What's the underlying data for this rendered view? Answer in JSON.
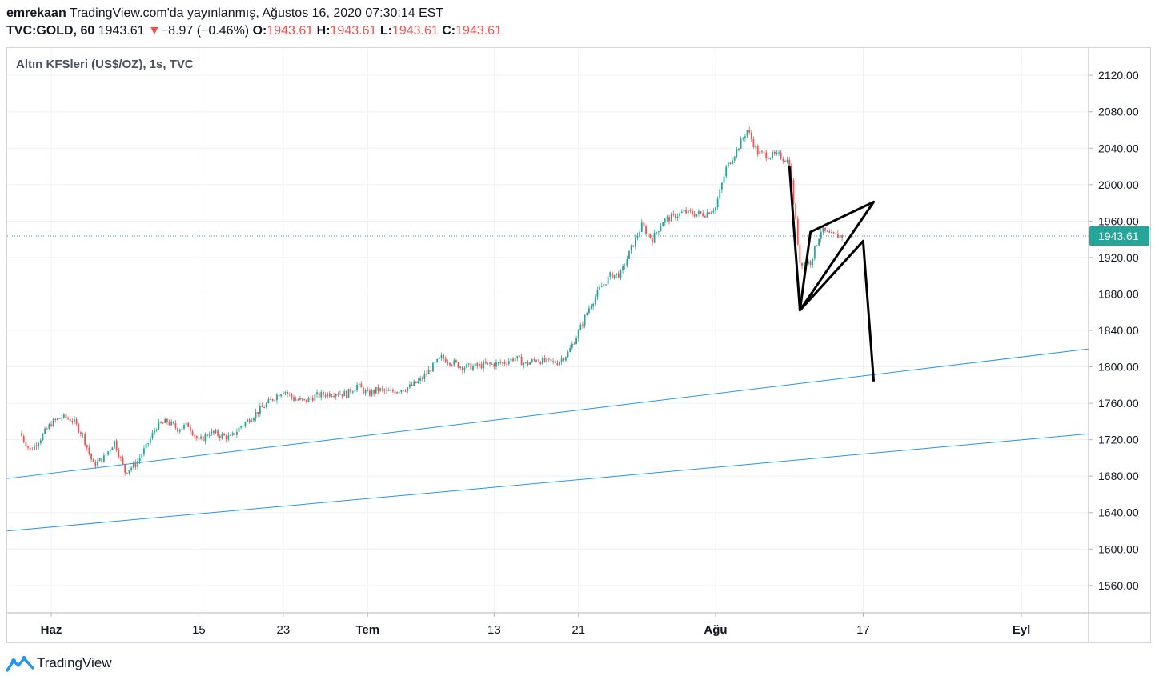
{
  "header": {
    "author": "emrekaan",
    "publish_text": "TradingView.com'da yayınlanmış, Ağustos 16, 2020 07:30:14 EST",
    "symbol": "TVC:GOLD, 60",
    "last_price": "1943.61",
    "change_arrow": "▼",
    "change": "−8.97 (−0.46%)",
    "o_label": "O:",
    "o_value": "1943.61",
    "h_label": "H:",
    "h_value": "1943.61",
    "l_label": "L:",
    "l_value": "1943.61",
    "c_label": "C:",
    "c_value": "1943.61"
  },
  "legend": {
    "title": "Altın KFSleri (US$/OZ), 1s, TVC"
  },
  "brand": {
    "name": "TradingView"
  },
  "colors": {
    "up": "#26a69a",
    "down": "#ef5350",
    "trendline": "#2196f3",
    "price_tag": "#26a69a",
    "drawing": "#000000"
  },
  "chart_data": {
    "type": "candlestick",
    "symbol": "TVC:GOLD",
    "interval": "60",
    "ylim": [
      1530,
      2150
    ],
    "y_ticks": [
      1560,
      1600,
      1640,
      1680,
      1720,
      1760,
      1800,
      1840,
      1880,
      1920,
      1960,
      2000,
      2040,
      2080,
      2120
    ],
    "x_ticks": [
      {
        "label": "Haz",
        "date": "2020-06-01",
        "bold": true
      },
      {
        "label": "15",
        "date": "2020-06-15",
        "bold": false
      },
      {
        "label": "23",
        "date": "2020-06-23",
        "bold": false
      },
      {
        "label": "Tem",
        "date": "2020-07-01",
        "bold": true
      },
      {
        "label": "13",
        "date": "2020-07-13",
        "bold": false
      },
      {
        "label": "21",
        "date": "2020-07-21",
        "bold": false
      },
      {
        "label": "Ağu",
        "date": "2020-08-03",
        "bold": true
      },
      {
        "label": "17",
        "date": "2020-08-17",
        "bold": false
      },
      {
        "label": "Eyl",
        "date": "2020-09-01",
        "bold": true
      }
    ],
    "current_price": 1943.61,
    "close_path": [
      {
        "date": "2020-05-29",
        "close": 1728
      },
      {
        "date": "2020-05-30",
        "close": 1708
      },
      {
        "date": "2020-05-31",
        "close": 1722
      },
      {
        "date": "2020-06-01",
        "close": 1738
      },
      {
        "date": "2020-06-02",
        "close": 1745
      },
      {
        "date": "2020-06-03",
        "close": 1742
      },
      {
        "date": "2020-06-04",
        "close": 1725
      },
      {
        "date": "2020-06-05",
        "close": 1692
      },
      {
        "date": "2020-06-06",
        "close": 1700
      },
      {
        "date": "2020-06-07",
        "close": 1718
      },
      {
        "date": "2020-06-08",
        "close": 1685
      },
      {
        "date": "2020-06-09",
        "close": 1693
      },
      {
        "date": "2020-06-10",
        "close": 1712
      },
      {
        "date": "2020-06-11",
        "close": 1735
      },
      {
        "date": "2020-06-12",
        "close": 1740
      },
      {
        "date": "2020-06-13",
        "close": 1732
      },
      {
        "date": "2020-06-14",
        "close": 1736
      },
      {
        "date": "2020-06-15",
        "close": 1718
      },
      {
        "date": "2020-06-16",
        "close": 1728
      },
      {
        "date": "2020-06-17",
        "close": 1725
      },
      {
        "date": "2020-06-18",
        "close": 1722
      },
      {
        "date": "2020-06-19",
        "close": 1735
      },
      {
        "date": "2020-06-20",
        "close": 1745
      },
      {
        "date": "2020-06-21",
        "close": 1755
      },
      {
        "date": "2020-06-22",
        "close": 1765
      },
      {
        "date": "2020-06-23",
        "close": 1775
      },
      {
        "date": "2020-06-24",
        "close": 1765
      },
      {
        "date": "2020-06-25",
        "close": 1762
      },
      {
        "date": "2020-06-26",
        "close": 1768
      },
      {
        "date": "2020-06-27",
        "close": 1770
      },
      {
        "date": "2020-06-28",
        "close": 1772
      },
      {
        "date": "2020-06-29",
        "close": 1770
      },
      {
        "date": "2020-06-30",
        "close": 1780
      },
      {
        "date": "2020-07-01",
        "close": 1770
      },
      {
        "date": "2020-07-02",
        "close": 1775
      },
      {
        "date": "2020-07-03",
        "close": 1772
      },
      {
        "date": "2020-07-04",
        "close": 1775
      },
      {
        "date": "2020-07-05",
        "close": 1778
      },
      {
        "date": "2020-07-06",
        "close": 1785
      },
      {
        "date": "2020-07-07",
        "close": 1798
      },
      {
        "date": "2020-07-08",
        "close": 1810
      },
      {
        "date": "2020-07-09",
        "close": 1805
      },
      {
        "date": "2020-07-10",
        "close": 1800
      },
      {
        "date": "2020-07-11",
        "close": 1800
      },
      {
        "date": "2020-07-12",
        "close": 1802
      },
      {
        "date": "2020-07-13",
        "close": 1803
      },
      {
        "date": "2020-07-14",
        "close": 1805
      },
      {
        "date": "2020-07-15",
        "close": 1810
      },
      {
        "date": "2020-07-16",
        "close": 1803
      },
      {
        "date": "2020-07-17",
        "close": 1808
      },
      {
        "date": "2020-07-18",
        "close": 1805
      },
      {
        "date": "2020-07-19",
        "close": 1805
      },
      {
        "date": "2020-07-20",
        "close": 1815
      },
      {
        "date": "2020-07-21",
        "close": 1838
      },
      {
        "date": "2020-07-22",
        "close": 1865
      },
      {
        "date": "2020-07-23",
        "close": 1885
      },
      {
        "date": "2020-07-24",
        "close": 1900
      },
      {
        "date": "2020-07-25",
        "close": 1902
      },
      {
        "date": "2020-07-26",
        "close": 1930
      },
      {
        "date": "2020-07-27",
        "close": 1955
      },
      {
        "date": "2020-07-28",
        "close": 1940
      },
      {
        "date": "2020-07-29",
        "close": 1960
      },
      {
        "date": "2020-07-30",
        "close": 1965
      },
      {
        "date": "2020-07-31",
        "close": 1970
      },
      {
        "date": "2020-08-01",
        "close": 1968
      },
      {
        "date": "2020-08-02",
        "close": 1968
      },
      {
        "date": "2020-08-03",
        "close": 1975
      },
      {
        "date": "2020-08-04",
        "close": 2018
      },
      {
        "date": "2020-08-05",
        "close": 2038
      },
      {
        "date": "2020-08-06",
        "close": 2060
      },
      {
        "date": "2020-08-07",
        "close": 2035
      },
      {
        "date": "2020-08-08",
        "close": 2032
      },
      {
        "date": "2020-08-09",
        "close": 2032
      },
      {
        "date": "2020-08-10",
        "close": 2025
      },
      {
        "date": "2020-08-11",
        "close": 1915
      },
      {
        "date": "2020-08-12",
        "close": 1915
      },
      {
        "date": "2020-08-13",
        "close": 1950
      },
      {
        "date": "2020-08-14",
        "close": 1944
      },
      {
        "date": "2020-08-15",
        "close": 1943.61
      }
    ],
    "trend_lines": [
      {
        "from": {
          "date": "2020-05-29",
          "price": 1679
        },
        "to": {
          "date": "2020-09-04",
          "price": 1815
        }
      },
      {
        "from": {
          "date": "2020-05-29",
          "price": 1621
        },
        "to": {
          "date": "2020-09-04",
          "price": 1723
        }
      }
    ],
    "drawing": [
      {
        "date": "2020-08-10",
        "price": 2021
      },
      {
        "date": "2020-08-11",
        "price": 1862
      },
      {
        "date": "2020-08-12",
        "price": 1948
      },
      {
        "date": "2020-08-18",
        "price": 1981
      },
      {
        "date": "2020-08-11",
        "price": 1862
      },
      {
        "date": "2020-08-17",
        "price": 1938
      },
      {
        "date": "2020-08-18",
        "price": 1784
      }
    ]
  }
}
